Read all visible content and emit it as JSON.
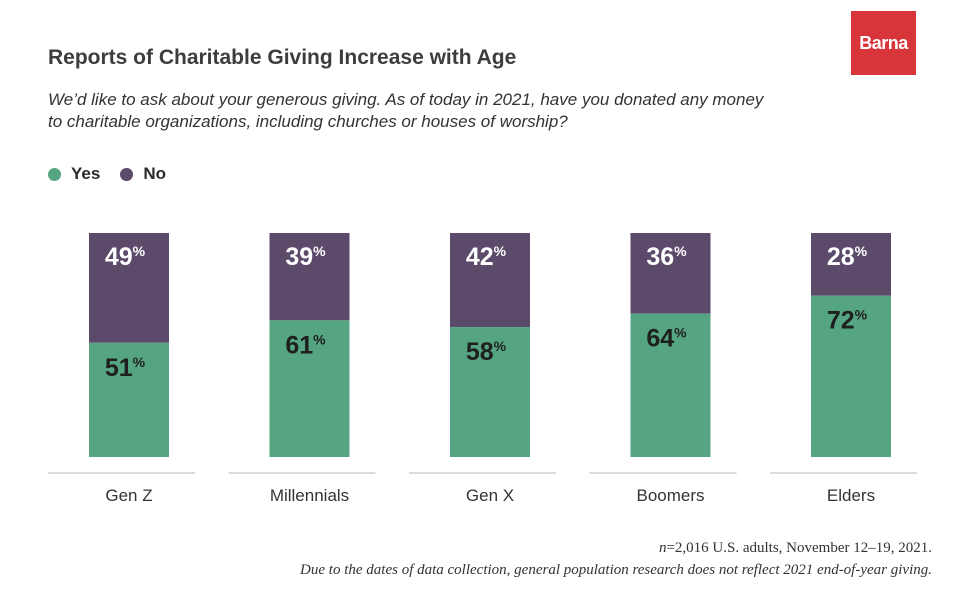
{
  "header": {
    "title": "Reports of Charitable Giving Increase with Age",
    "subtitle": "We’d like to ask about your generous giving. As of today in 2021, have you donated any money to charitable organizations, including churches or houses of worship?",
    "logo_text": "Barna"
  },
  "colors": {
    "yes": "#55a582",
    "no": "#5c4a6b",
    "brand": "#d8353b"
  },
  "chart_data": {
    "type": "bar",
    "stacked": true,
    "categories": [
      "Gen Z",
      "Millennials",
      "Gen X",
      "Boomers",
      "Elders"
    ],
    "series": [
      {
        "name": "Yes",
        "values": [
          51,
          61,
          58,
          64,
          72
        ]
      },
      {
        "name": "No",
        "values": [
          49,
          39,
          42,
          36,
          28
        ]
      }
    ],
    "value_suffix": "%",
    "ylim": [
      0,
      100
    ],
    "legend_position": "top-left",
    "grid": false
  },
  "footer": {
    "note_n": "n",
    "note_rest": "=2,016 U.S. adults, November 12–19, 2021.",
    "note_line2": "Due to the dates of data collection, general population research does not reflect 2021 end-of-year giving."
  }
}
